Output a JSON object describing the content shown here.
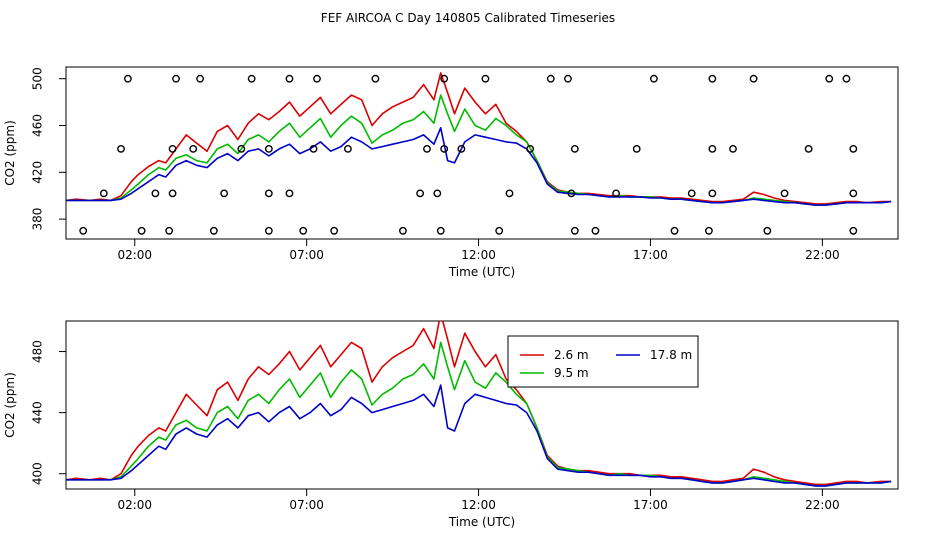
{
  "title": "FEF AIRCOA C  Day 140805  Calibrated Timeseries",
  "chart_data": [
    {
      "type": "scatter+line",
      "ylabel": "CO2 (ppm)",
      "xlabel": "Time (UTC)",
      "xlim": [
        0.0,
        24.2
      ],
      "ylim": [
        363,
        510
      ],
      "xticks": [
        2,
        7,
        12,
        17,
        22
      ],
      "xtick_labels": [
        "02:00",
        "07:00",
        "12:00",
        "17:00",
        "22:00"
      ],
      "yticks": [
        380,
        420,
        460,
        500
      ],
      "ytick_labels": [
        "380",
        "420",
        "460",
        "500"
      ],
      "calibration_points": [
        [
          0.5,
          370
        ],
        [
          1.1,
          402
        ],
        [
          1.6,
          440
        ],
        [
          1.8,
          500
        ],
        [
          2.2,
          370
        ],
        [
          2.6,
          402
        ],
        [
          3.0,
          370
        ],
        [
          3.1,
          402
        ],
        [
          3.1,
          440
        ],
        [
          3.2,
          500
        ],
        [
          3.7,
          440
        ],
        [
          3.9,
          500
        ],
        [
          4.3,
          370
        ],
        [
          4.6,
          402
        ],
        [
          5.1,
          440
        ],
        [
          5.4,
          500
        ],
        [
          5.9,
          370
        ],
        [
          5.9,
          402
        ],
        [
          5.9,
          440
        ],
        [
          6.5,
          402
        ],
        [
          6.5,
          500
        ],
        [
          6.9,
          370
        ],
        [
          7.2,
          440
        ],
        [
          7.3,
          500
        ],
        [
          7.8,
          370
        ],
        [
          8.2,
          440
        ],
        [
          9.0,
          500
        ],
        [
          9.8,
          370
        ],
        [
          10.3,
          402
        ],
        [
          10.5,
          440
        ],
        [
          10.8,
          402
        ],
        [
          10.9,
          370
        ],
        [
          11.0,
          440
        ],
        [
          11.0,
          500
        ],
        [
          11.5,
          440
        ],
        [
          12.2,
          500
        ],
        [
          12.6,
          370
        ],
        [
          12.9,
          402
        ],
        [
          13.5,
          440
        ],
        [
          14.1,
          500
        ],
        [
          14.6,
          500
        ],
        [
          14.7,
          402
        ],
        [
          14.8,
          440
        ],
        [
          14.8,
          370
        ],
        [
          15.4,
          370
        ],
        [
          16.0,
          402
        ],
        [
          16.6,
          440
        ],
        [
          17.1,
          500
        ],
        [
          17.7,
          370
        ],
        [
          18.2,
          402
        ],
        [
          18.7,
          370
        ],
        [
          18.8,
          402
        ],
        [
          18.8,
          440
        ],
        [
          18.8,
          500
        ],
        [
          19.4,
          440
        ],
        [
          20.0,
          500
        ],
        [
          20.4,
          370
        ],
        [
          20.9,
          402
        ],
        [
          21.6,
          440
        ],
        [
          22.2,
          500
        ],
        [
          22.7,
          500
        ],
        [
          22.9,
          440
        ],
        [
          22.9,
          402
        ],
        [
          22.9,
          370
        ]
      ],
      "series_ref": "shared"
    },
    {
      "type": "line",
      "ylabel": "CO2 (ppm)",
      "xlabel": "Time (UTC)",
      "xlim": [
        0.0,
        24.2
      ],
      "ylim": [
        390,
        500
      ],
      "xticks": [
        2,
        7,
        12,
        17,
        22
      ],
      "xtick_labels": [
        "02:00",
        "07:00",
        "12:00",
        "17:00",
        "22:00"
      ],
      "yticks": [
        400,
        440,
        480
      ],
      "ytick_labels": [
        "400",
        "440",
        "480"
      ],
      "legend": "top-right",
      "series_ref": "shared"
    }
  ],
  "series": [
    {
      "name": "2.6 m",
      "color": "#dd0000",
      "x": [
        0.0,
        0.3,
        0.7,
        1.0,
        1.3,
        1.6,
        1.9,
        2.1,
        2.4,
        2.7,
        2.9,
        3.2,
        3.5,
        3.8,
        4.1,
        4.4,
        4.7,
        5.0,
        5.3,
        5.6,
        5.9,
        6.2,
        6.5,
        6.8,
        7.1,
        7.4,
        7.7,
        8.0,
        8.3,
        8.6,
        8.9,
        9.2,
        9.5,
        9.8,
        10.1,
        10.4,
        10.7,
        10.9,
        11.1,
        11.3,
        11.6,
        11.9,
        12.2,
        12.5,
        12.8,
        13.1,
        13.4,
        13.7,
        14.0,
        14.3,
        14.6,
        14.9,
        15.2,
        15.5,
        15.8,
        16.1,
        16.4,
        16.7,
        17.0,
        17.3,
        17.6,
        17.9,
        18.2,
        18.5,
        18.8,
        19.1,
        19.4,
        19.7,
        20.0,
        20.3,
        20.6,
        20.9,
        21.2,
        21.5,
        21.8,
        22.1,
        22.4,
        22.7,
        23.0,
        23.3,
        23.7,
        24.0
      ],
      "values": [
        396,
        397,
        396,
        397,
        396,
        400,
        412,
        418,
        425,
        430,
        428,
        440,
        452,
        445,
        438,
        455,
        460,
        448,
        462,
        470,
        465,
        472,
        480,
        468,
        476,
        484,
        470,
        478,
        486,
        482,
        460,
        470,
        476,
        480,
        484,
        495,
        482,
        505,
        488,
        470,
        492,
        480,
        470,
        478,
        462,
        455,
        446,
        430,
        412,
        405,
        403,
        402,
        402,
        401,
        400,
        400,
        400,
        399,
        399,
        399,
        398,
        398,
        397,
        396,
        395,
        395,
        396,
        397,
        403,
        401,
        398,
        396,
        395,
        394,
        393,
        393,
        394,
        395,
        395,
        394,
        395,
        395
      ]
    },
    {
      "name": "9.5 m",
      "color": "#00bb00",
      "x": [
        0.0,
        0.3,
        0.7,
        1.0,
        1.3,
        1.6,
        1.9,
        2.1,
        2.4,
        2.7,
        2.9,
        3.2,
        3.5,
        3.8,
        4.1,
        4.4,
        4.7,
        5.0,
        5.3,
        5.6,
        5.9,
        6.2,
        6.5,
        6.8,
        7.1,
        7.4,
        7.7,
        8.0,
        8.3,
        8.6,
        8.9,
        9.2,
        9.5,
        9.8,
        10.1,
        10.4,
        10.7,
        10.9,
        11.1,
        11.3,
        11.6,
        11.9,
        12.2,
        12.5,
        12.8,
        13.1,
        13.4,
        13.7,
        14.0,
        14.3,
        14.6,
        14.9,
        15.2,
        15.5,
        15.8,
        16.1,
        16.4,
        16.7,
        17.0,
        17.3,
        17.6,
        17.9,
        18.2,
        18.5,
        18.8,
        19.1,
        19.4,
        19.7,
        20.0,
        20.3,
        20.6,
        20.9,
        21.2,
        21.5,
        21.8,
        22.1,
        22.4,
        22.7,
        23.0,
        23.3,
        23.7,
        24.0
      ],
      "values": [
        396,
        396,
        396,
        396,
        396,
        398,
        405,
        410,
        418,
        424,
        422,
        432,
        435,
        430,
        428,
        440,
        444,
        436,
        448,
        452,
        446,
        455,
        462,
        450,
        458,
        466,
        450,
        460,
        468,
        462,
        445,
        452,
        456,
        462,
        465,
        472,
        462,
        486,
        470,
        455,
        474,
        460,
        456,
        466,
        460,
        452,
        446,
        430,
        411,
        404,
        403,
        402,
        401,
        400,
        399,
        400,
        399,
        399,
        399,
        398,
        397,
        397,
        396,
        395,
        394,
        394,
        395,
        396,
        398,
        397,
        396,
        395,
        394,
        393,
        392,
        392,
        393,
        394,
        394,
        394,
        394,
        395
      ]
    },
    {
      "name": "17.8 m",
      "color": "#0000cc",
      "x": [
        0.0,
        0.3,
        0.7,
        1.0,
        1.3,
        1.6,
        1.9,
        2.1,
        2.4,
        2.7,
        2.9,
        3.2,
        3.5,
        3.8,
        4.1,
        4.4,
        4.7,
        5.0,
        5.3,
        5.6,
        5.9,
        6.2,
        6.5,
        6.8,
        7.1,
        7.4,
        7.7,
        8.0,
        8.3,
        8.6,
        8.9,
        9.2,
        9.5,
        9.8,
        10.1,
        10.4,
        10.7,
        10.9,
        11.1,
        11.3,
        11.6,
        11.9,
        12.2,
        12.5,
        12.8,
        13.1,
        13.4,
        13.7,
        14.0,
        14.3,
        14.6,
        14.9,
        15.2,
        15.5,
        15.8,
        16.1,
        16.4,
        16.7,
        17.0,
        17.3,
        17.6,
        17.9,
        18.2,
        18.5,
        18.8,
        19.1,
        19.4,
        19.7,
        20.0,
        20.3,
        20.6,
        20.9,
        21.2,
        21.5,
        21.8,
        22.1,
        22.4,
        22.7,
        23.0,
        23.3,
        23.7,
        24.0
      ],
      "values": [
        396,
        396,
        396,
        396,
        396,
        397,
        402,
        406,
        412,
        418,
        416,
        426,
        430,
        426,
        424,
        432,
        436,
        430,
        438,
        440,
        434,
        440,
        444,
        436,
        440,
        446,
        438,
        442,
        450,
        446,
        440,
        442,
        444,
        446,
        448,
        452,
        444,
        458,
        430,
        428,
        446,
        452,
        450,
        448,
        446,
        445,
        440,
        428,
        410,
        403,
        402,
        401,
        401,
        400,
        399,
        399,
        399,
        399,
        398,
        398,
        397,
        397,
        396,
        395,
        394,
        394,
        395,
        396,
        397,
        396,
        395,
        394,
        394,
        393,
        392,
        392,
        393,
        394,
        394,
        394,
        394,
        395
      ]
    }
  ]
}
